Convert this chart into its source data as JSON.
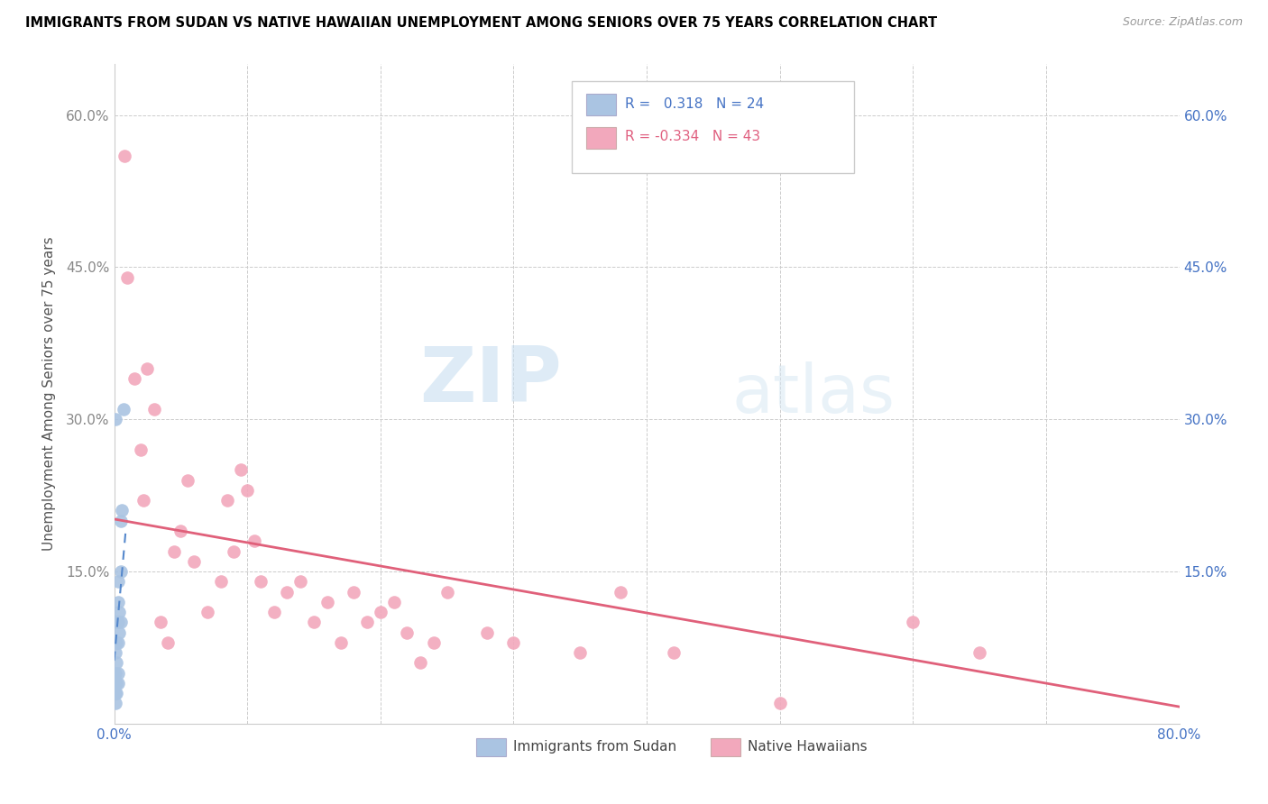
{
  "title": "IMMIGRANTS FROM SUDAN VS NATIVE HAWAIIAN UNEMPLOYMENT AMONG SENIORS OVER 75 YEARS CORRELATION CHART",
  "source": "Source: ZipAtlas.com",
  "ylabel": "Unemployment Among Seniors over 75 years",
  "xlim": [
    0,
    0.8
  ],
  "ylim": [
    0,
    0.65
  ],
  "xtick_positions": [
    0.0,
    0.1,
    0.2,
    0.3,
    0.4,
    0.5,
    0.6,
    0.7,
    0.8
  ],
  "ytick_positions": [
    0.0,
    0.15,
    0.3,
    0.45,
    0.6
  ],
  "blue_R": 0.318,
  "blue_N": 24,
  "pink_R": -0.334,
  "pink_N": 43,
  "blue_color": "#aac4e2",
  "pink_color": "#f2a8bc",
  "blue_line_color": "#5588cc",
  "pink_line_color": "#e0607a",
  "watermark_zip": "ZIP",
  "watermark_atlas": "atlas",
  "blue_scatter_x": [
    0.001,
    0.001,
    0.001,
    0.001,
    0.001,
    0.002,
    0.002,
    0.002,
    0.002,
    0.002,
    0.003,
    0.003,
    0.003,
    0.003,
    0.003,
    0.003,
    0.004,
    0.004,
    0.005,
    0.005,
    0.005,
    0.006,
    0.007,
    0.001
  ],
  "blue_scatter_y": [
    0.02,
    0.03,
    0.04,
    0.05,
    0.07,
    0.03,
    0.04,
    0.06,
    0.08,
    0.1,
    0.04,
    0.05,
    0.08,
    0.1,
    0.12,
    0.14,
    0.09,
    0.11,
    0.1,
    0.15,
    0.2,
    0.21,
    0.31,
    0.3
  ],
  "pink_scatter_x": [
    0.008,
    0.01,
    0.015,
    0.02,
    0.022,
    0.025,
    0.03,
    0.035,
    0.04,
    0.045,
    0.05,
    0.055,
    0.06,
    0.07,
    0.08,
    0.085,
    0.09,
    0.095,
    0.1,
    0.105,
    0.11,
    0.12,
    0.13,
    0.14,
    0.15,
    0.16,
    0.17,
    0.18,
    0.19,
    0.2,
    0.21,
    0.22,
    0.23,
    0.24,
    0.25,
    0.28,
    0.3,
    0.35,
    0.38,
    0.42,
    0.5,
    0.6,
    0.65
  ],
  "pink_scatter_y": [
    0.56,
    0.44,
    0.34,
    0.27,
    0.22,
    0.35,
    0.31,
    0.1,
    0.08,
    0.17,
    0.19,
    0.24,
    0.16,
    0.11,
    0.14,
    0.22,
    0.17,
    0.25,
    0.23,
    0.18,
    0.14,
    0.11,
    0.13,
    0.14,
    0.1,
    0.12,
    0.08,
    0.13,
    0.1,
    0.11,
    0.12,
    0.09,
    0.06,
    0.08,
    0.13,
    0.09,
    0.08,
    0.07,
    0.13,
    0.07,
    0.02,
    0.1,
    0.07
  ],
  "blue_line_x0": 0.0,
  "blue_line_x1": 0.009,
  "pink_line_x0": 0.0,
  "pink_line_x1": 0.8
}
